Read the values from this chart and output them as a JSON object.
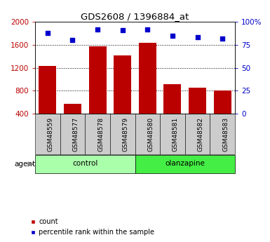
{
  "title": "GDS2608 / 1396884_at",
  "samples": [
    "GSM48559",
    "GSM48577",
    "GSM48578",
    "GSM48579",
    "GSM48580",
    "GSM48581",
    "GSM48582",
    "GSM48583"
  ],
  "counts": [
    1230,
    570,
    1570,
    1420,
    1630,
    920,
    860,
    810
  ],
  "percentiles": [
    88,
    80,
    92,
    91,
    92,
    85,
    83,
    82
  ],
  "groups": [
    {
      "label": "control",
      "indices": [
        0,
        3
      ],
      "color": "#aaffaa"
    },
    {
      "label": "olanzapine",
      "indices": [
        4,
        7
      ],
      "color": "#44ee44"
    }
  ],
  "bar_color": "#bb0000",
  "marker_color": "#0000cc",
  "ylim_left": [
    400,
    2000
  ],
  "ylim_right": [
    0,
    100
  ],
  "yticks_left": [
    400,
    800,
    1200,
    1600,
    2000
  ],
  "yticks_right": [
    0,
    25,
    50,
    75,
    100
  ],
  "yticklabels_right": [
    "0",
    "25",
    "50",
    "75",
    "100%"
  ],
  "grid_vals": [
    800,
    1200,
    1600
  ],
  "bar_width": 0.7,
  "bg_color": "#ffffff",
  "plot_bg": "#ffffff",
  "tick_area_color": "#cccccc",
  "agent_label": "agent",
  "legend_count_label": "count",
  "legend_pct_label": "percentile rank within the sample"
}
